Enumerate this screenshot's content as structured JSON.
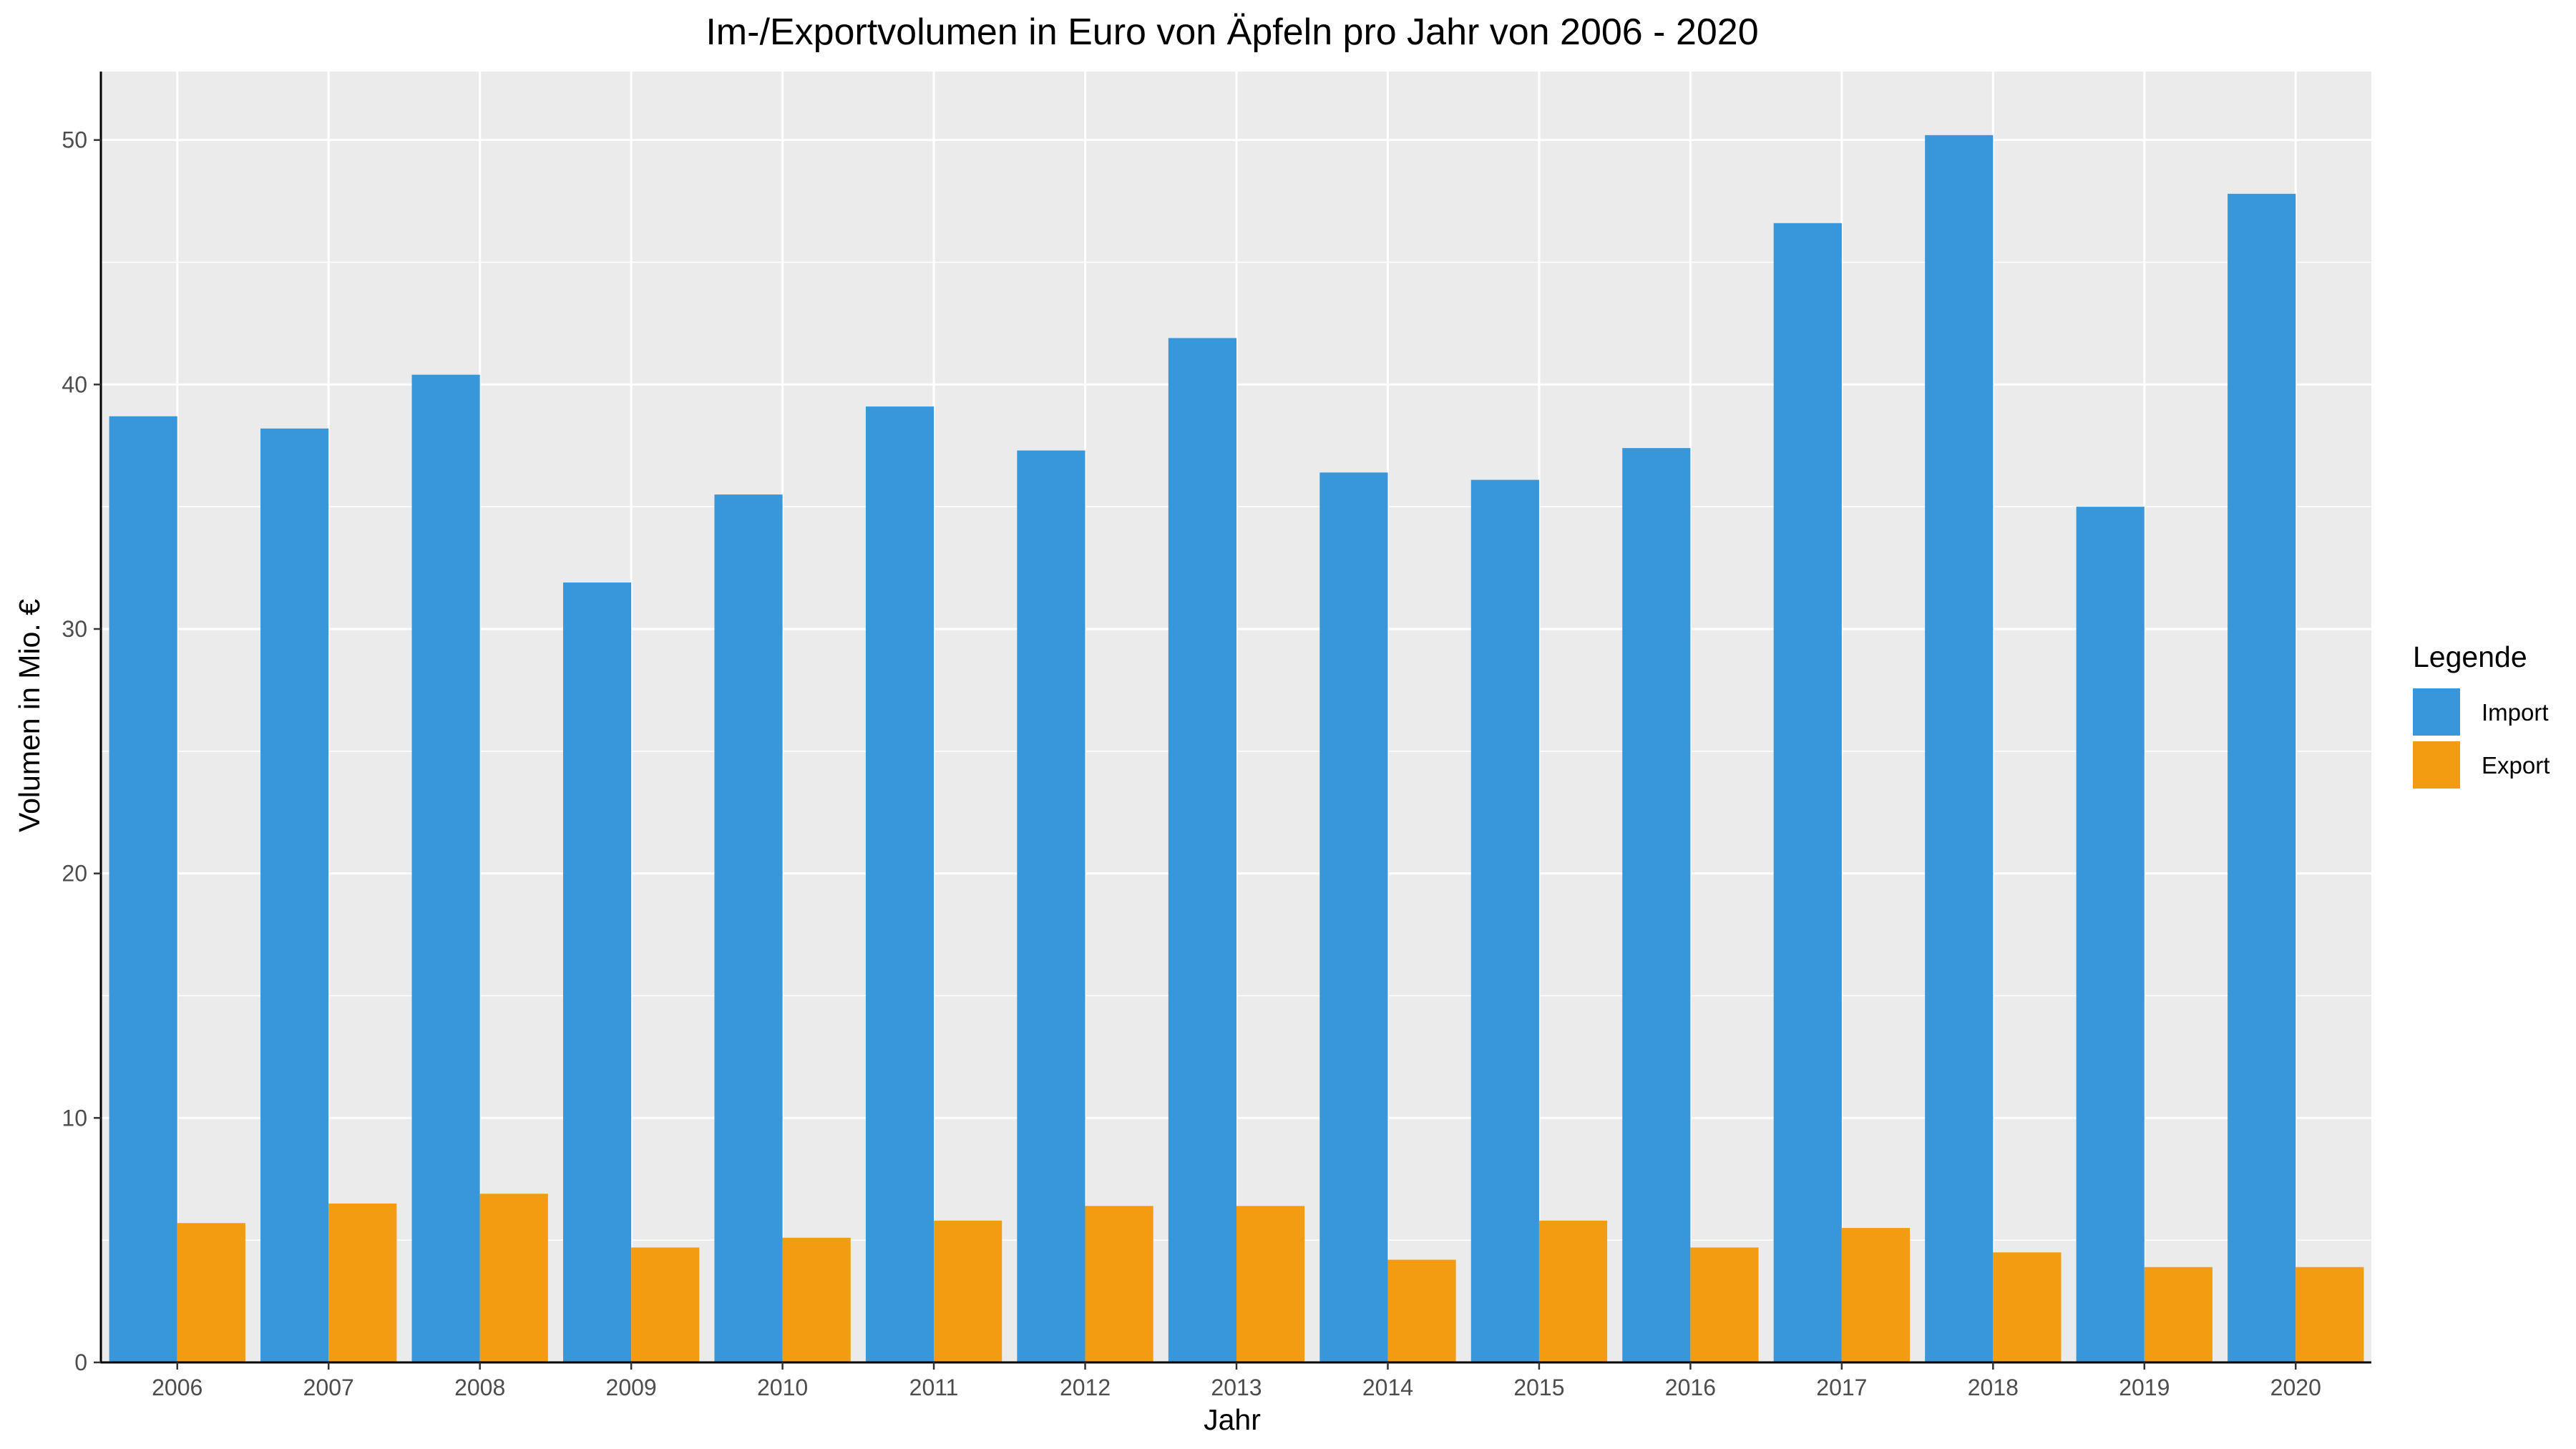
{
  "chart_data": {
    "type": "bar",
    "title": "Im-/Exportvolumen in Euro von Äpfeln pro Jahr von 2006 - 2020",
    "xlabel": "Jahr",
    "ylabel": "Volumen in Mio. €",
    "ylim": [
      0,
      52.8
    ],
    "yticks": [
      0,
      10,
      20,
      30,
      40,
      50
    ],
    "grid": true,
    "legend": {
      "title": "Legende",
      "position": "right"
    },
    "categories": [
      "2006",
      "2007",
      "2008",
      "2009",
      "2010",
      "2011",
      "2012",
      "2013",
      "2014",
      "2015",
      "2016",
      "2017",
      "2018",
      "2019",
      "2020"
    ],
    "series": [
      {
        "name": "Import",
        "color": "#3897DB",
        "values": [
          38.7,
          38.2,
          40.4,
          31.9,
          35.5,
          39.1,
          37.3,
          41.9,
          36.4,
          36.1,
          37.4,
          46.6,
          50.2,
          35.0,
          47.8
        ]
      },
      {
        "name": "Export",
        "color": "#F39C12",
        "values": [
          5.7,
          6.5,
          6.9,
          4.7,
          5.1,
          5.8,
          6.4,
          6.4,
          4.2,
          5.8,
          4.7,
          5.5,
          4.5,
          3.9,
          3.9
        ]
      }
    ]
  }
}
